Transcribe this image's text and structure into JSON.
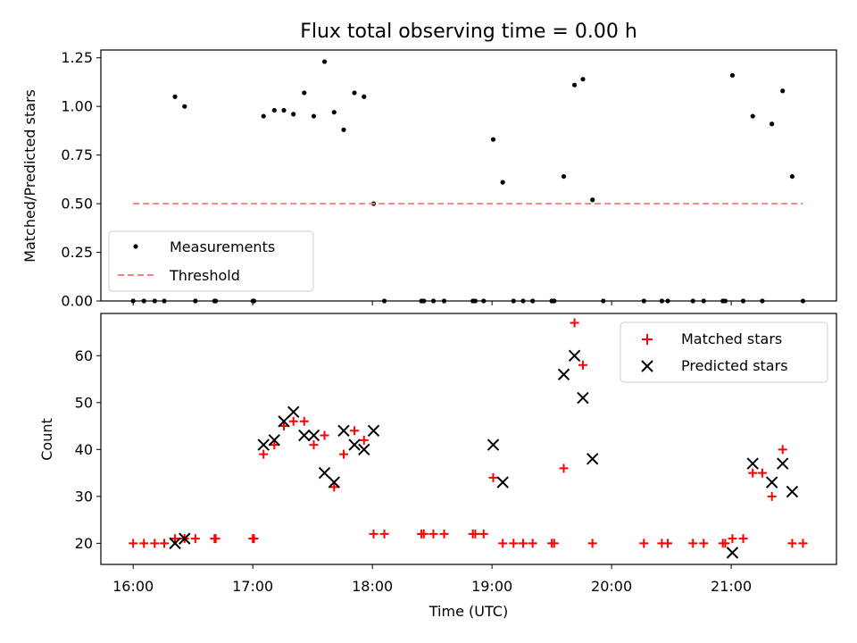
{
  "chart_data": [
    {
      "type": "scatter",
      "title": "Flux total observing time = 0.00 h",
      "xlabel": "",
      "ylabel": "Matched/Predicted stars",
      "xlim_hours": [
        15.73,
        21.88
      ],
      "ylim": [
        0,
        1.29
      ],
      "yticks": [
        0.0,
        0.25,
        0.5,
        0.75,
        1.0,
        1.25
      ],
      "ytick_labels": [
        "0.00",
        "0.25",
        "0.50",
        "0.75",
        "1.00",
        "1.25"
      ],
      "legend_position": "bottom-left",
      "series": [
        {
          "name": "Measurements",
          "color": "#000000",
          "marker": "dot",
          "points": [
            [
              16.0,
              0
            ],
            [
              16.09,
              0
            ],
            [
              16.18,
              0
            ],
            [
              16.26,
              0
            ],
            [
              16.35,
              1.05
            ],
            [
              16.43,
              1.0
            ],
            [
              16.52,
              0
            ],
            [
              16.68,
              0
            ],
            [
              16.69,
              0
            ],
            [
              17.0,
              0
            ],
            [
              17.01,
              0
            ],
            [
              17.09,
              0.95
            ],
            [
              17.18,
              0.98
            ],
            [
              17.26,
              0.98
            ],
            [
              17.34,
              0.96
            ],
            [
              17.43,
              1.07
            ],
            [
              17.51,
              0.95
            ],
            [
              17.6,
              1.23
            ],
            [
              17.68,
              0.97
            ],
            [
              17.76,
              0.88
            ],
            [
              17.85,
              1.07
            ],
            [
              17.93,
              1.05
            ],
            [
              18.01,
              0.5
            ],
            [
              18.1,
              0
            ],
            [
              18.41,
              0
            ],
            [
              18.43,
              0
            ],
            [
              18.51,
              0
            ],
            [
              18.6,
              0
            ],
            [
              18.84,
              0
            ],
            [
              18.86,
              0
            ],
            [
              18.93,
              0
            ],
            [
              19.01,
              0.83
            ],
            [
              19.09,
              0.61
            ],
            [
              19.18,
              0
            ],
            [
              19.26,
              0
            ],
            [
              19.34,
              0
            ],
            [
              19.5,
              0
            ],
            [
              19.52,
              0
            ],
            [
              19.6,
              0.64
            ],
            [
              19.69,
              1.11
            ],
            [
              19.76,
              1.14
            ],
            [
              19.84,
              0.52
            ],
            [
              19.93,
              0
            ],
            [
              20.27,
              0
            ],
            [
              20.42,
              0
            ],
            [
              20.47,
              0
            ],
            [
              20.68,
              0
            ],
            [
              20.77,
              0
            ],
            [
              20.93,
              0
            ],
            [
              20.95,
              0
            ],
            [
              21.01,
              1.16
            ],
            [
              21.1,
              0
            ],
            [
              21.18,
              0.95
            ],
            [
              21.26,
              0
            ],
            [
              21.34,
              0.91
            ],
            [
              21.43,
              1.08
            ],
            [
              21.51,
              0.64
            ],
            [
              21.6,
              0
            ]
          ]
        },
        {
          "name": "Threshold",
          "color": "#ff8080",
          "style": "dashed",
          "x": [
            16.0,
            21.6
          ],
          "y": [
            0.5,
            0.5
          ]
        }
      ]
    },
    {
      "type": "scatter",
      "title": "",
      "xlabel": "Time (UTC)",
      "ylabel": "Count",
      "xlim_hours": [
        15.73,
        21.88
      ],
      "ylim": [
        15.5,
        69
      ],
      "yticks": [
        20,
        30,
        40,
        50,
        60
      ],
      "ytick_labels": [
        "20",
        "30",
        "40",
        "50",
        "60"
      ],
      "xticks_hours": [
        16,
        17,
        18,
        19,
        20,
        21
      ],
      "xtick_labels": [
        "16:00",
        "17:00",
        "18:00",
        "19:00",
        "20:00",
        "21:00"
      ],
      "legend_position": "top-right",
      "series": [
        {
          "name": "Matched stars",
          "color": "#ff0000",
          "marker": "plus",
          "points": [
            [
              16.0,
              20
            ],
            [
              16.09,
              20
            ],
            [
              16.18,
              20
            ],
            [
              16.26,
              20
            ],
            [
              16.35,
              21
            ],
            [
              16.43,
              21
            ],
            [
              16.52,
              21
            ],
            [
              16.68,
              21
            ],
            [
              16.69,
              21
            ],
            [
              17.0,
              21
            ],
            [
              17.01,
              21
            ],
            [
              17.09,
              39
            ],
            [
              17.18,
              41
            ],
            [
              17.26,
              45
            ],
            [
              17.34,
              46
            ],
            [
              17.43,
              46
            ],
            [
              17.51,
              41
            ],
            [
              17.6,
              43
            ],
            [
              17.68,
              32
            ],
            [
              17.76,
              39
            ],
            [
              17.85,
              44
            ],
            [
              17.93,
              42
            ],
            [
              18.01,
              22
            ],
            [
              18.1,
              22
            ],
            [
              18.41,
              22
            ],
            [
              18.43,
              22
            ],
            [
              18.51,
              22
            ],
            [
              18.6,
              22
            ],
            [
              18.84,
              22
            ],
            [
              18.86,
              22
            ],
            [
              18.93,
              22
            ],
            [
              19.01,
              34
            ],
            [
              19.09,
              20
            ],
            [
              19.18,
              20
            ],
            [
              19.26,
              20
            ],
            [
              19.34,
              20
            ],
            [
              19.5,
              20
            ],
            [
              19.52,
              20
            ],
            [
              19.6,
              36
            ],
            [
              19.69,
              67
            ],
            [
              19.76,
              58
            ],
            [
              19.84,
              20
            ],
            [
              20.27,
              20
            ],
            [
              20.42,
              20
            ],
            [
              20.47,
              20
            ],
            [
              20.68,
              20
            ],
            [
              20.77,
              20
            ],
            [
              20.93,
              20
            ],
            [
              20.95,
              20
            ],
            [
              21.01,
              21
            ],
            [
              21.1,
              21
            ],
            [
              21.18,
              35
            ],
            [
              21.26,
              35
            ],
            [
              21.34,
              30
            ],
            [
              21.43,
              40
            ],
            [
              21.51,
              20
            ],
            [
              21.6,
              20
            ]
          ]
        },
        {
          "name": "Predicted stars",
          "color": "#000000",
          "marker": "x",
          "points": [
            [
              16.35,
              20
            ],
            [
              16.43,
              21
            ],
            [
              17.09,
              41
            ],
            [
              17.18,
              42
            ],
            [
              17.26,
              46
            ],
            [
              17.34,
              48
            ],
            [
              17.43,
              43
            ],
            [
              17.51,
              43
            ],
            [
              17.6,
              35
            ],
            [
              17.68,
              33
            ],
            [
              17.76,
              44
            ],
            [
              17.85,
              41
            ],
            [
              17.93,
              40
            ],
            [
              18.01,
              44
            ],
            [
              19.01,
              41
            ],
            [
              19.09,
              33
            ],
            [
              19.6,
              56
            ],
            [
              19.69,
              60
            ],
            [
              19.76,
              51
            ],
            [
              19.84,
              38
            ],
            [
              21.01,
              18
            ],
            [
              21.18,
              37
            ],
            [
              21.34,
              33
            ],
            [
              21.43,
              37
            ],
            [
              21.51,
              31
            ]
          ]
        }
      ]
    }
  ]
}
